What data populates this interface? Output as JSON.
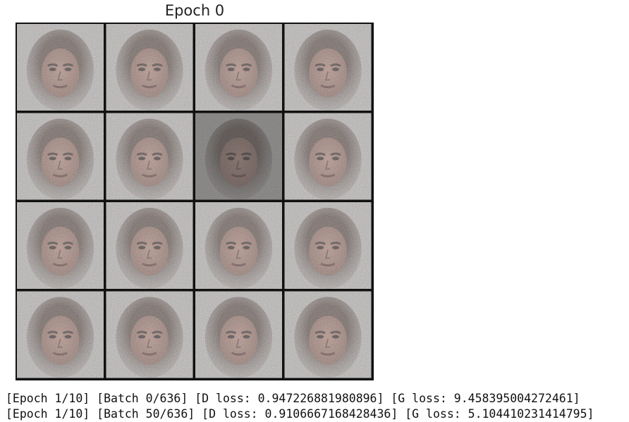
{
  "figure": {
    "title": "Epoch 0"
  },
  "log": {
    "lines": [
      "[Epoch 1/10] [Batch 0/636] [D loss: 0.947226881980896] [G loss: 9.458395004272461]",
      "[Epoch 1/10] [Batch 50/636] [D loss: 0.9106667168428436] [G loss: 5.104410231414795]"
    ]
  }
}
